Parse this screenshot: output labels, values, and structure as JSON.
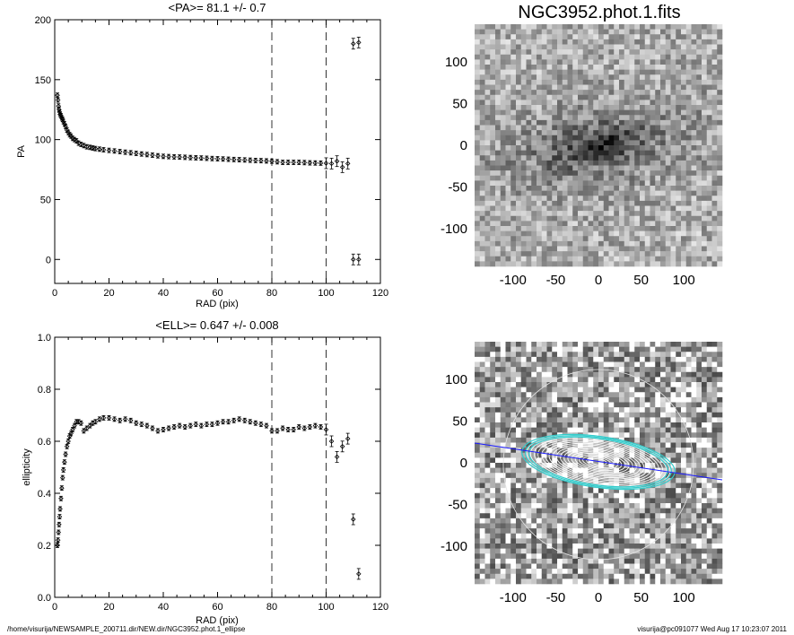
{
  "pa_plot": {
    "title": "<PA>=  81.1 +/-   0.7",
    "xlabel": "RAD (pix)",
    "ylabel": "PA"
  },
  "ell_plot": {
    "title": "<ELL>= 0.647 +/-  0.008",
    "xlabel": "RAD (pix)",
    "ylabel": "ellipticity"
  },
  "image_title": "NGC3952.phot.1.fits",
  "footer": {
    "path": "/home/visurija/NEWSAMPLE_200711.dir/NEW.dir/NGC3952.phot.1_ellipse",
    "stamp": "visurija@pc091077  Wed Aug 17 10:23:07 2011"
  },
  "colors": {
    "model_line": "#1a1aff",
    "outer_ellipses": "#33cccc",
    "inner_ellipses": "#ffffff",
    "points": "#000000"
  },
  "chart_data": [
    {
      "type": "scatter",
      "title": "<PA>=  81.1 +/-   0.7",
      "xlabel": "RAD (pix)",
      "ylabel": "PA",
      "xlim": [
        0,
        120
      ],
      "ylim": [
        -20,
        200
      ],
      "xticks": [
        0,
        20,
        40,
        60,
        80,
        100,
        120
      ],
      "yticks": [
        0,
        50,
        100,
        150,
        200
      ],
      "vlines": [
        80,
        100
      ],
      "series": [
        {
          "x": [
            1.0,
            1.2,
            1.4,
            1.6,
            1.8,
            2.0,
            2.3,
            2.6,
            2.9,
            3.2,
            3.6,
            4.0,
            4.5,
            5.0,
            5.5,
            6.0,
            6.6,
            7.3,
            8.0,
            8.8,
            9.7,
            10.7,
            11.8,
            13,
            14,
            15,
            16.5,
            18,
            20,
            22,
            24,
            26,
            28,
            30,
            32,
            34,
            36,
            38,
            40,
            42,
            44,
            46,
            48,
            50,
            52,
            54,
            56,
            58,
            60,
            62,
            64,
            66,
            68,
            70,
            72,
            74,
            76,
            78,
            80,
            82,
            84,
            86,
            88,
            90,
            92,
            94,
            96,
            98,
            100,
            102,
            104,
            106,
            108,
            110,
            112
          ],
          "y": [
            137,
            133,
            128,
            125,
            123,
            121,
            120,
            118,
            117,
            115,
            113,
            111,
            108,
            106,
            104,
            103,
            101,
            100,
            99,
            97,
            96,
            95,
            94,
            93.5,
            93,
            92.5,
            92,
            91.5,
            91,
            90.5,
            90,
            89.5,
            89,
            88.5,
            88,
            87.5,
            87,
            86.5,
            86,
            85.8,
            85.6,
            85.4,
            85.2,
            85,
            84.8,
            84.6,
            84.4,
            84.2,
            84,
            83.8,
            83.6,
            83.4,
            83.2,
            83,
            82.8,
            82.6,
            82.4,
            82.2,
            82,
            81.5,
            81,
            81,
            81,
            81,
            80.8,
            80.6,
            80.5,
            80.4,
            80.3,
            80,
            82,
            77,
            80,
            0,
            0
          ]
        },
        {
          "x": [
            110,
            112
          ],
          "y": [
            180,
            181
          ]
        }
      ]
    },
    {
      "type": "scatter",
      "title": "<ELL>= 0.647 +/-  0.008",
      "xlabel": "RAD (pix)",
      "ylabel": "ellipticity",
      "xlim": [
        0,
        120
      ],
      "ylim": [
        0.0,
        1.0
      ],
      "xticks": [
        0,
        20,
        40,
        60,
        80,
        100,
        120
      ],
      "yticks": [
        0.0,
        0.2,
        0.4,
        0.6,
        0.8,
        1.0
      ],
      "vlines": [
        80,
        100
      ],
      "series": [
        {
          "x": [
            1.0,
            1.2,
            1.4,
            1.6,
            1.8,
            2.0,
            2.3,
            2.6,
            2.9,
            3.2,
            3.6,
            4.0,
            4.5,
            5.0,
            5.5,
            6.0,
            6.6,
            7.3,
            8.0,
            8.8,
            9.7,
            10.7,
            11.8,
            13,
            14,
            15,
            16.5,
            18,
            20,
            22,
            24,
            26,
            28,
            30,
            32,
            34,
            36,
            38,
            40,
            42,
            44,
            46,
            48,
            50,
            52,
            54,
            56,
            58,
            60,
            62,
            64,
            66,
            68,
            70,
            72,
            74,
            76,
            78,
            80,
            82,
            84,
            86,
            88,
            90,
            92,
            94,
            96,
            98,
            100,
            102,
            104,
            106,
            108,
            110,
            112
          ],
          "y": [
            0.2,
            0.22,
            0.25,
            0.28,
            0.31,
            0.34,
            0.38,
            0.42,
            0.46,
            0.49,
            0.52,
            0.55,
            0.58,
            0.6,
            0.62,
            0.63,
            0.645,
            0.66,
            0.675,
            0.675,
            0.67,
            0.64,
            0.65,
            0.66,
            0.67,
            0.675,
            0.685,
            0.69,
            0.69,
            0.685,
            0.68,
            0.685,
            0.68,
            0.67,
            0.665,
            0.66,
            0.65,
            0.64,
            0.645,
            0.65,
            0.655,
            0.66,
            0.655,
            0.66,
            0.665,
            0.66,
            0.665,
            0.665,
            0.67,
            0.675,
            0.675,
            0.68,
            0.685,
            0.68,
            0.675,
            0.67,
            0.665,
            0.66,
            0.64,
            0.64,
            0.65,
            0.645,
            0.645,
            0.655,
            0.65,
            0.655,
            0.66,
            0.655,
            0.645,
            0.6,
            0.54,
            0.58,
            0.61,
            0.3,
            0.09
          ]
        }
      ]
    }
  ],
  "image_panels": {
    "ticks": [
      -100,
      -50,
      0,
      50,
      100
    ],
    "range": [
      -145,
      145
    ]
  }
}
